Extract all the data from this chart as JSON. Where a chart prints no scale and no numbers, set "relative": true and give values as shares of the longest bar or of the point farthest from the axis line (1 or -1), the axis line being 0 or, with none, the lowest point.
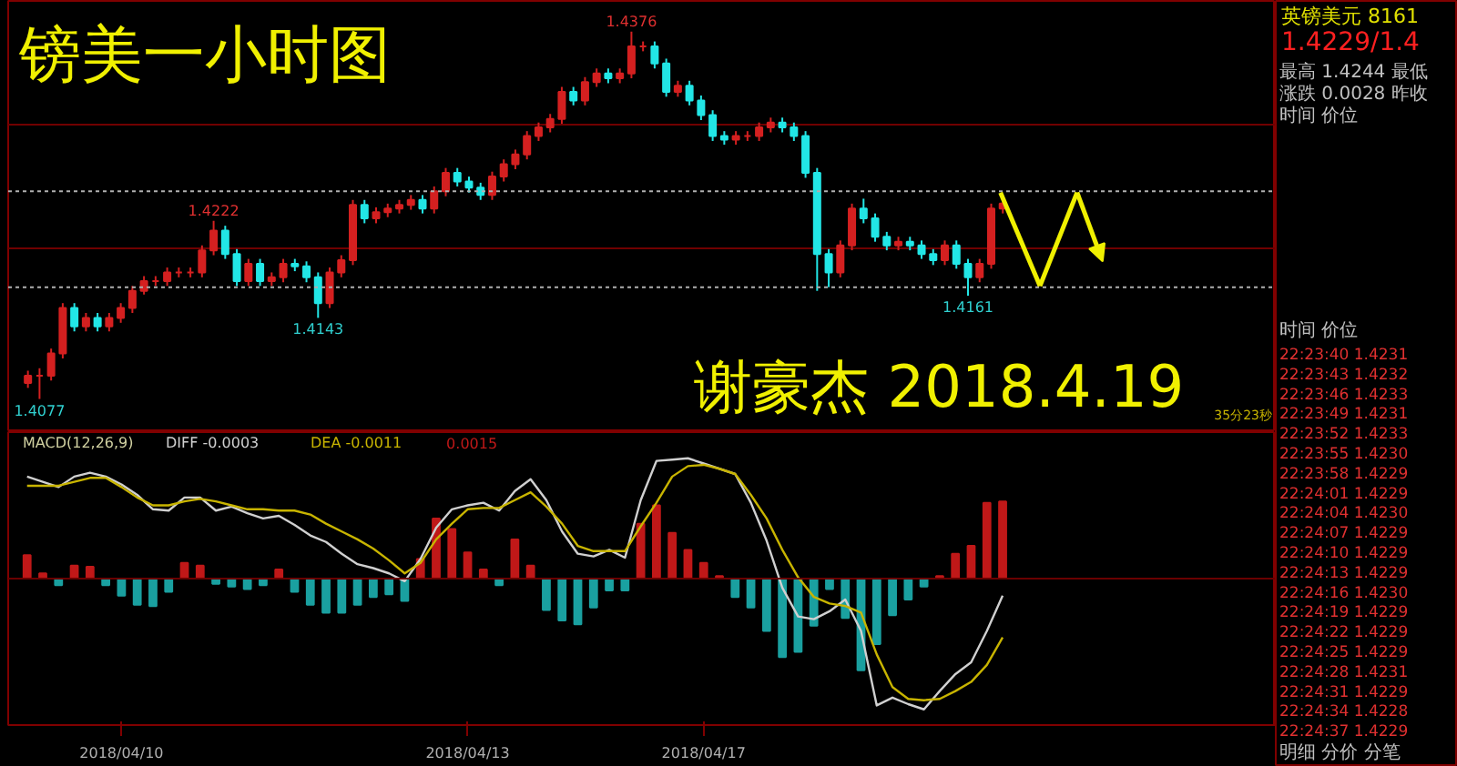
{
  "chart_data": [
    {
      "type": "candlestick",
      "title": "镑美一小时图",
      "ylim": [
        1.405,
        1.4401
      ],
      "tick_labels": false,
      "grid": "y",
      "categories": [
        null,
        null,
        null,
        null,
        null,
        null,
        null,
        null,
        null,
        null,
        null,
        null,
        null,
        null,
        null,
        null,
        null,
        null,
        null,
        null,
        null,
        null,
        null,
        null,
        null,
        null,
        null,
        null,
        null,
        null,
        null,
        null,
        null,
        null,
        null,
        null,
        null,
        null,
        null,
        null,
        null,
        null,
        null,
        null,
        null,
        null,
        null,
        null,
        null,
        null,
        null,
        null,
        null,
        null,
        null,
        null,
        null,
        null,
        null,
        null,
        null,
        null,
        null,
        null,
        null,
        null,
        null,
        null,
        null,
        null,
        null,
        null,
        null,
        null,
        null,
        null,
        null,
        null,
        null,
        null,
        null,
        null,
        null,
        null,
        null
      ],
      "yticks": [
        {
          "value": 1.4199,
          "label": null
        },
        {
          "value": 1.4301,
          "label": null
        }
      ],
      "ohlc": [
        [
          1.409,
          1.41,
          1.4086,
          1.4096
        ],
        [
          1.4096,
          1.4102,
          1.4077,
          1.4096
        ],
        [
          1.4096,
          1.4118,
          1.4092,
          1.4114
        ],
        [
          1.4114,
          1.4155,
          1.411,
          1.4151
        ],
        [
          1.4151,
          1.4155,
          1.4132,
          1.4136
        ],
        [
          1.4136,
          1.4147,
          1.4132,
          1.4143
        ],
        [
          1.4143,
          1.4147,
          1.4132,
          1.4136
        ],
        [
          1.4136,
          1.4147,
          1.4132,
          1.4143
        ],
        [
          1.4143,
          1.4155,
          1.4139,
          1.4151
        ],
        [
          1.4151,
          1.4169,
          1.4147,
          1.4165
        ],
        [
          1.4165,
          1.4177,
          1.4162,
          1.4173
        ],
        [
          1.4173,
          1.4177,
          1.4169,
          1.4173
        ],
        [
          1.4173,
          1.4184,
          1.4169,
          1.418
        ],
        [
          1.418,
          1.4184,
          1.4176,
          1.418
        ],
        [
          1.418,
          1.4184,
          1.4176,
          1.418
        ],
        [
          1.418,
          1.4202,
          1.4176,
          1.4198
        ],
        [
          1.4198,
          1.4222,
          1.4194,
          1.4214
        ],
        [
          1.4214,
          1.4218,
          1.4191,
          1.4195
        ],
        [
          1.4195,
          1.4199,
          1.4169,
          1.4173
        ],
        [
          1.4173,
          1.4191,
          1.4169,
          1.4187
        ],
        [
          1.4187,
          1.4191,
          1.4169,
          1.4173
        ],
        [
          1.4173,
          1.418,
          1.4169,
          1.4176
        ],
        [
          1.4176,
          1.4191,
          1.4172,
          1.4187
        ],
        [
          1.4187,
          1.4191,
          1.4181,
          1.4185
        ],
        [
          1.4185,
          1.4189,
          1.4172,
          1.4176
        ],
        [
          1.4176,
          1.418,
          1.4143,
          1.4155
        ],
        [
          1.4155,
          1.4184,
          1.4151,
          1.418
        ],
        [
          1.418,
          1.4194,
          1.4176,
          1.419
        ],
        [
          1.419,
          1.4239,
          1.4186,
          1.4235
        ],
        [
          1.4235,
          1.4239,
          1.422,
          1.4224
        ],
        [
          1.4224,
          1.4233,
          1.422,
          1.4229
        ],
        [
          1.4229,
          1.4236,
          1.4225,
          1.4232
        ],
        [
          1.4232,
          1.4239,
          1.4228,
          1.4235
        ],
        [
          1.4235,
          1.4243,
          1.4231,
          1.4239
        ],
        [
          1.4239,
          1.4243,
          1.4228,
          1.4232
        ],
        [
          1.4232,
          1.425,
          1.4228,
          1.4246
        ],
        [
          1.4246,
          1.4265,
          1.4242,
          1.4261
        ],
        [
          1.4261,
          1.4265,
          1.425,
          1.4254
        ],
        [
          1.4254,
          1.4258,
          1.4245,
          1.4249
        ],
        [
          1.4249,
          1.4253,
          1.4239,
          1.4243
        ],
        [
          1.4243,
          1.4262,
          1.4239,
          1.4258
        ],
        [
          1.4258,
          1.4272,
          1.4254,
          1.4268
        ],
        [
          1.4268,
          1.428,
          1.4264,
          1.4276
        ],
        [
          1.4276,
          1.4295,
          1.4272,
          1.4291
        ],
        [
          1.4291,
          1.4302,
          1.4287,
          1.4298
        ],
        [
          1.4298,
          1.4309,
          1.4294,
          1.4305
        ],
        [
          1.4305,
          1.4331,
          1.4301,
          1.4327
        ],
        [
          1.4327,
          1.4331,
          1.4316,
          1.432
        ],
        [
          1.432,
          1.4339,
          1.4316,
          1.4335
        ],
        [
          1.4335,
          1.4346,
          1.4331,
          1.4342
        ],
        [
          1.4342,
          1.4346,
          1.4334,
          1.4338
        ],
        [
          1.4338,
          1.4346,
          1.4334,
          1.4342
        ],
        [
          1.4342,
          1.4376,
          1.4338,
          1.4364
        ],
        [
          1.4364,
          1.4368,
          1.436,
          1.4364
        ],
        [
          1.4364,
          1.4368,
          1.4346,
          1.435
        ],
        [
          1.435,
          1.4354,
          1.4323,
          1.4327
        ],
        [
          1.4327,
          1.4336,
          1.4323,
          1.4332
        ],
        [
          1.4332,
          1.4336,
          1.4316,
          1.432
        ],
        [
          1.432,
          1.4324,
          1.4304,
          1.4308
        ],
        [
          1.4308,
          1.4312,
          1.4287,
          1.4291
        ],
        [
          1.4291,
          1.4295,
          1.4284,
          1.4288
        ],
        [
          1.4288,
          1.4295,
          1.4284,
          1.4291
        ],
        [
          1.4291,
          1.4295,
          1.4287,
          1.4291
        ],
        [
          1.4291,
          1.4302,
          1.4287,
          1.4298
        ],
        [
          1.4298,
          1.4306,
          1.4294,
          1.4302
        ],
        [
          1.4302,
          1.4306,
          1.4294,
          1.4298
        ],
        [
          1.4298,
          1.4302,
          1.4287,
          1.4291
        ],
        [
          1.4291,
          1.4295,
          1.4257,
          1.4261
        ],
        [
          1.4261,
          1.4265,
          1.4165,
          1.4195
        ],
        [
          1.4195,
          1.4199,
          1.4168,
          1.418
        ],
        [
          1.418,
          1.4206,
          1.4176,
          1.4202
        ],
        [
          1.4202,
          1.4236,
          1.4198,
          1.4232
        ],
        [
          1.4232,
          1.424,
          1.422,
          1.4224
        ],
        [
          1.4224,
          1.4228,
          1.4205,
          1.4209
        ],
        [
          1.4209,
          1.4213,
          1.4198,
          1.4202
        ],
        [
          1.4202,
          1.4209,
          1.4198,
          1.4205
        ],
        [
          1.4205,
          1.4209,
          1.4198,
          1.4202
        ],
        [
          1.4202,
          1.4206,
          1.4191,
          1.4195
        ],
        [
          1.4195,
          1.4199,
          1.4186,
          1.419
        ],
        [
          1.419,
          1.4206,
          1.4186,
          1.4202
        ],
        [
          1.4202,
          1.4206,
          1.4183,
          1.4187
        ],
        [
          1.4187,
          1.4191,
          1.4161,
          1.4176
        ],
        [
          1.4176,
          1.4191,
          1.4172,
          1.4187
        ],
        [
          1.4187,
          1.4236,
          1.4183,
          1.4232
        ],
        [
          1.4232,
          1.424,
          1.4228,
          1.4236
        ]
      ],
      "colors": [
        "#d42020",
        "#d42020",
        "#d42020",
        "#d42020",
        "#22e6e6",
        "#d42020",
        "#22e6e6",
        "#d42020",
        "#d42020",
        "#d42020",
        "#d42020",
        "#d42020",
        "#d42020",
        "#d42020",
        "#d42020",
        "#d42020",
        "#d42020",
        "#22e6e6",
        "#22e6e6",
        "#d42020",
        "#22e6e6",
        "#d42020",
        "#d42020",
        "#22e6e6",
        "#22e6e6",
        "#22e6e6",
        "#d42020",
        "#d42020",
        "#d42020",
        "#22e6e6",
        "#d42020",
        "#d42020",
        "#d42020",
        "#d42020",
        "#22e6e6",
        "#d42020",
        "#d42020",
        "#22e6e6",
        "#22e6e6",
        "#22e6e6",
        "#d42020",
        "#d42020",
        "#d42020",
        "#d42020",
        "#d42020",
        "#d42020",
        "#d42020",
        "#22e6e6",
        "#d42020",
        "#d42020",
        "#22e6e6",
        "#d42020",
        "#d42020",
        "#d42020",
        "#22e6e6",
        "#22e6e6",
        "#d42020",
        "#22e6e6",
        "#22e6e6",
        "#22e6e6",
        "#22e6e6",
        "#d42020",
        "#d42020",
        "#d42020",
        "#d42020",
        "#22e6e6",
        "#22e6e6",
        "#22e6e6",
        "#22e6e6",
        "#22e6e6",
        "#d42020",
        "#d42020",
        "#22e6e6",
        "#22e6e6",
        "#22e6e6",
        "#d42020",
        "#22e6e6",
        "#22e6e6",
        "#22e6e6",
        "#d42020",
        "#22e6e6",
        "#22e6e6",
        "#d42020",
        "#d42020",
        "#d42020"
      ],
      "ref_lines": [
        {
          "axis": "y",
          "value": 1.4246,
          "color": "#b0b0b0",
          "line_style": "dotted"
        },
        {
          "axis": "y",
          "value": 1.4168,
          "color": "#b0b0b0",
          "line_style": "dotted"
        }
      ],
      "annotations": [
        "谢豪杰   2018.4.19",
        "35分23秒",
        {
          "text": "1.4376",
          "y": 1.4376
        },
        {
          "text": "1.4222",
          "y": 1.4222
        },
        {
          "text": "1.4143",
          "y": 1.4143
        },
        {
          "text": "1.4161",
          "y": 1.4161
        },
        {
          "text": "1.4077",
          "y": 1.4077
        }
      ]
    },
    {
      "type": "bar",
      "title": "MACD(12,26,9)",
      "relative": true,
      "tick_labels": "x",
      "ref_lines": [
        {
          "axis": "y",
          "value": 0,
          "color": "#6a0000",
          "line_style": "solid"
        }
      ],
      "categories": [
        null,
        null,
        null,
        null,
        null,
        null,
        "2018/04/10",
        null,
        null,
        null,
        null,
        null,
        null,
        null,
        null,
        null,
        null,
        null,
        null,
        null,
        null,
        null,
        null,
        null,
        null,
        null,
        null,
        null,
        "2018/04/13",
        null,
        null,
        null,
        null,
        null,
        null,
        null,
        null,
        null,
        null,
        null,
        null,
        null,
        null,
        "2018/04/17",
        null,
        null,
        null,
        null,
        null,
        null,
        null,
        null,
        null,
        null,
        null,
        null,
        null,
        null,
        null,
        null,
        null,
        null,
        null
      ],
      "series": [
        {
          "name": "0.0015",
          "type": "bar",
          "values": [
            0.18,
            0.04,
            -0.05,
            0.1,
            0.09,
            -0.05,
            -0.13,
            -0.2,
            -0.21,
            -0.1,
            0.12,
            0.1,
            -0.04,
            -0.06,
            -0.08,
            -0.05,
            0.07,
            -0.1,
            -0.2,
            -0.26,
            -0.26,
            -0.2,
            -0.14,
            -0.12,
            -0.17,
            0.15,
            0.46,
            0.38,
            0.2,
            0.07,
            -0.05,
            0.3,
            0.1,
            -0.24,
            -0.32,
            -0.35,
            -0.22,
            -0.09,
            -0.09,
            0.42,
            0.56,
            0.35,
            0.22,
            0.12,
            0.02,
            -0.14,
            -0.22,
            -0.4,
            -0.6,
            -0.56,
            -0.36,
            -0.08,
            -0.3,
            -0.7,
            -0.5,
            -0.28,
            -0.16,
            -0.06,
            0.02,
            0.19,
            0.25,
            0.58,
            0.59
          ],
          "colors": [
            "#c01818",
            "#c01818",
            "#1aa0a0",
            "#c01818",
            "#c01818",
            "#1aa0a0",
            "#1aa0a0",
            "#1aa0a0",
            "#1aa0a0",
            "#1aa0a0",
            "#c01818",
            "#c01818",
            "#1aa0a0",
            "#1aa0a0",
            "#1aa0a0",
            "#1aa0a0",
            "#c01818",
            "#1aa0a0",
            "#1aa0a0",
            "#1aa0a0",
            "#1aa0a0",
            "#1aa0a0",
            "#1aa0a0",
            "#1aa0a0",
            "#1aa0a0",
            "#c01818",
            "#c01818",
            "#c01818",
            "#c01818",
            "#c01818",
            "#1aa0a0",
            "#c01818",
            "#c01818",
            "#1aa0a0",
            "#1aa0a0",
            "#1aa0a0",
            "#1aa0a0",
            "#1aa0a0",
            "#1aa0a0",
            "#c01818",
            "#c01818",
            "#c01818",
            "#c01818",
            "#c01818",
            "#c01818",
            "#1aa0a0",
            "#1aa0a0",
            "#1aa0a0",
            "#1aa0a0",
            "#1aa0a0",
            "#1aa0a0",
            "#1aa0a0",
            "#1aa0a0",
            "#1aa0a0",
            "#1aa0a0",
            "#1aa0a0",
            "#1aa0a0",
            "#1aa0a0",
            "#c01818",
            "#c01818",
            "#c01818",
            "#c01818",
            "#c01818"
          ]
        },
        {
          "name": "DIFF -0.0003",
          "type": "line",
          "color": "#d0d0d0",
          "values": [
            0.78,
            0.74,
            0.7,
            0.78,
            0.81,
            0.78,
            0.72,
            0.64,
            0.53,
            0.52,
            0.62,
            0.62,
            0.52,
            0.55,
            0.5,
            0.46,
            0.48,
            0.41,
            0.33,
            0.28,
            0.19,
            0.11,
            0.08,
            0.04,
            -0.02,
            0.15,
            0.39,
            0.53,
            0.56,
            0.58,
            0.52,
            0.67,
            0.76,
            0.6,
            0.36,
            0.19,
            0.17,
            0.22,
            0.16,
            0.6,
            0.9,
            0.91,
            0.92,
            0.88,
            0.84,
            0.8,
            0.58,
            0.29,
            -0.07,
            -0.29,
            -0.31,
            -0.25,
            -0.16,
            -0.4,
            -0.97,
            -0.91,
            -0.96,
            -1,
            -0.86,
            -0.73,
            -0.64,
            -0.4,
            -0.13
          ]
        },
        {
          "name": "DEA -0.0011",
          "type": "line",
          "color": "#c8b400",
          "values": [
            0.71,
            0.71,
            0.71,
            0.74,
            0.77,
            0.77,
            0.7,
            0.62,
            0.56,
            0.56,
            0.59,
            0.61,
            0.59,
            0.56,
            0.53,
            0.53,
            0.52,
            0.52,
            0.49,
            0.42,
            0.36,
            0.3,
            0.23,
            0.14,
            0.04,
            0.12,
            0.3,
            0.42,
            0.53,
            0.54,
            0.54,
            0.6,
            0.66,
            0.55,
            0.42,
            0.25,
            0.21,
            0.21,
            0.21,
            0.4,
            0.58,
            0.78,
            0.86,
            0.87,
            0.84,
            0.8,
            0.64,
            0.46,
            0.22,
            0.01,
            -0.14,
            -0.19,
            -0.21,
            -0.26,
            -0.58,
            -0.83,
            -0.92,
            -0.93,
            -0.92,
            -0.86,
            -0.79,
            -0.66,
            -0.45
          ]
        }
      ]
    },
    {
      "type": "other",
      "title": "英镑美元 8161",
      "subtitle": "1.4229/1.4",
      "annotations": [
        "最高 1.4244 最低",
        "涨跌 0.0028 昨收",
        "时间 价位",
        "时间 价位",
        "22:23:40 1.4231",
        "22:23:43 1.4232",
        "22:23:46 1.4233",
        "22:23:49 1.4231",
        "22:23:52 1.4233",
        "22:23:55 1.4230",
        "22:23:58 1.4229",
        "22:24:01 1.4229",
        "22:24:04 1.4230",
        "22:24:07 1.4229",
        "22:24:10 1.4229",
        "22:24:13 1.4229",
        "22:24:16 1.4230",
        "22:24:19 1.4229",
        "22:24:22 1.4229",
        "22:24:25 1.4229",
        "22:24:28 1.4231",
        "22:24:31 1.4229",
        "22:24:34 1.4228",
        "22:24:37 1.4229",
        "明细 分价 分笔"
      ]
    }
  ]
}
